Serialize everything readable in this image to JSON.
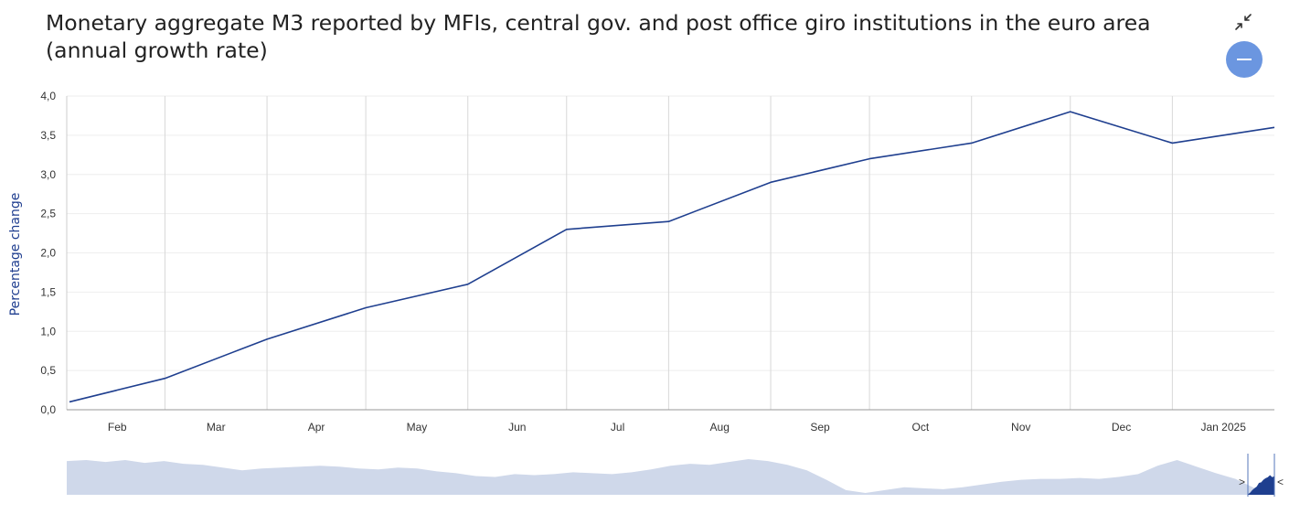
{
  "title": "Monetary aggregate M3 reported by MFIs, central gov. and post office giro institutions in the euro area (annual growth rate)",
  "controls": {
    "collapse_icon": "collapse-arrows-icon",
    "minus_icon": "minus-icon",
    "accent_color": "#6b96e0"
  },
  "chart_data": {
    "type": "line",
    "ylabel": "Percentage change",
    "ylim": [
      0,
      4
    ],
    "yticks": [
      "0,0",
      "0,5",
      "1,0",
      "1,5",
      "2,0",
      "2,5",
      "3,0",
      "3,5",
      "4,0"
    ],
    "xtick_labels": [
      "Feb",
      "Mar",
      "Apr",
      "May",
      "Jun",
      "Jul",
      "Aug",
      "Sep",
      "Oct",
      "Nov",
      "Dec",
      "Jan 2025"
    ],
    "series": [
      {
        "color": "#1f3f8f",
        "x": [
          "2024-01-31",
          "2024-02-29",
          "2024-03-31",
          "2024-04-30",
          "2024-05-31",
          "2024-06-30",
          "2024-07-31",
          "2024-08-31",
          "2024-09-30",
          "2024-10-31",
          "2024-11-30",
          "2024-12-31",
          "2025-01-31"
        ],
        "values": [
          0.1,
          0.4,
          0.9,
          1.3,
          1.6,
          2.3,
          2.4,
          2.9,
          3.2,
          3.4,
          3.8,
          3.4,
          3.6
        ]
      }
    ],
    "grid": "vertical at month ends, light horizontal",
    "navigator": {
      "fill_color": "#cfd8ea",
      "selected_color": "#1f3f8f",
      "values": [
        3.4,
        3.5,
        3.3,
        3.5,
        3.2,
        3.4,
        3.1,
        3.0,
        2.7,
        2.4,
        2.6,
        2.7,
        2.8,
        2.9,
        2.8,
        2.6,
        2.5,
        2.7,
        2.6,
        2.3,
        2.1,
        1.8,
        1.7,
        2.0,
        1.9,
        2.0,
        2.2,
        2.1,
        2.0,
        2.2,
        2.5,
        2.9,
        3.1,
        3.0,
        3.3,
        3.6,
        3.4,
        3.0,
        2.4,
        1.4,
        0.3,
        0.0,
        0.3,
        0.6,
        0.5,
        0.4,
        0.6,
        0.9,
        1.2,
        1.4,
        1.5,
        1.5,
        1.6,
        1.5,
        1.7,
        2.0,
        2.9,
        3.5,
        2.8,
        2.1,
        1.5,
        0.5,
        0.2
      ]
    }
  }
}
